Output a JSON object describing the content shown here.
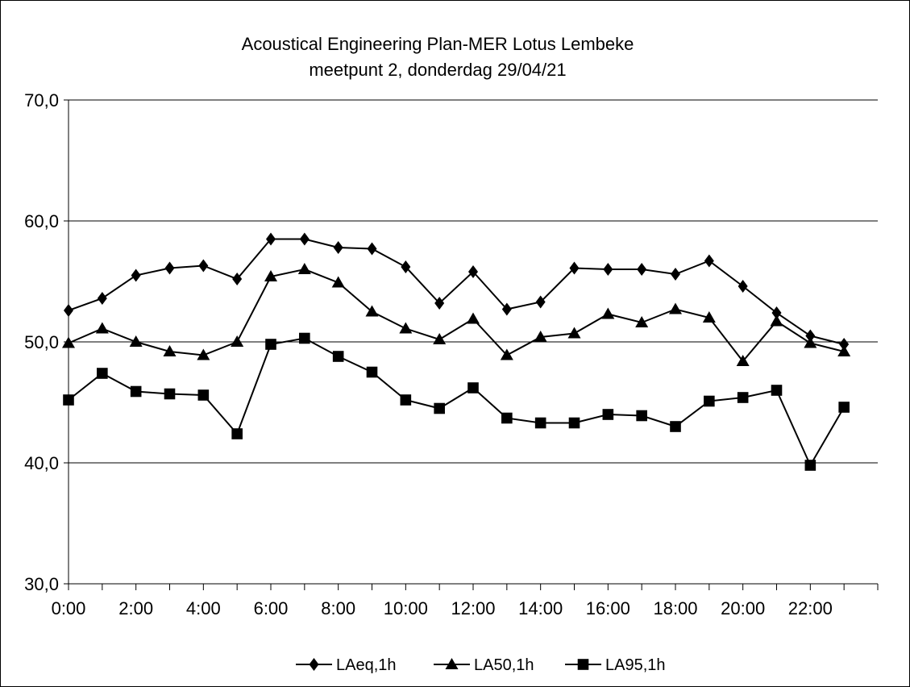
{
  "chart_data": {
    "type": "line",
    "title": "Acoustical Engineering Plan-MER Lotus Lembeke",
    "subtitle": "meetpunt 2, donderdag 29/04/21",
    "xlabel": "",
    "ylabel": "",
    "ylim": [
      30,
      70
    ],
    "y_ticks": [
      "30,0",
      "40,0",
      "50,0",
      "60,0",
      "70,0"
    ],
    "y_tick_values": [
      30,
      40,
      50,
      60,
      70
    ],
    "categories": [
      "0:00",
      "1:00",
      "2:00",
      "3:00",
      "4:00",
      "5:00",
      "6:00",
      "7:00",
      "8:00",
      "9:00",
      "10:00",
      "11:00",
      "12:00",
      "13:00",
      "14:00",
      "15:00",
      "16:00",
      "17:00",
      "18:00",
      "19:00",
      "20:00",
      "21:00",
      "22:00",
      "23:00"
    ],
    "x_tick_labels": [
      "0:00",
      "2:00",
      "4:00",
      "6:00",
      "8:00",
      "10:00",
      "12:00",
      "14:00",
      "16:00",
      "18:00",
      "20:00",
      "22:00"
    ],
    "grid": "horizontal",
    "legend_position": "bottom",
    "series": [
      {
        "name": "LAeq,1h",
        "marker": "diamond",
        "color": "#000000",
        "values": [
          52.6,
          53.6,
          55.5,
          56.1,
          56.3,
          55.2,
          58.5,
          58.5,
          57.8,
          57.7,
          56.2,
          53.2,
          55.8,
          52.7,
          53.3,
          56.1,
          56.0,
          56.0,
          55.6,
          56.7,
          54.6,
          52.4,
          50.5,
          49.8
        ]
      },
      {
        "name": "LA50,1h",
        "marker": "triangle",
        "color": "#000000",
        "values": [
          49.9,
          51.1,
          50.0,
          49.2,
          48.9,
          50.0,
          55.4,
          56.0,
          54.9,
          52.5,
          51.1,
          50.2,
          51.9,
          48.9,
          50.4,
          50.7,
          52.3,
          51.6,
          52.7,
          52.0,
          48.4,
          51.7,
          49.9,
          49.2
        ]
      },
      {
        "name": "LA95,1h",
        "marker": "square",
        "color": "#000000",
        "values": [
          45.2,
          47.4,
          45.9,
          45.7,
          45.6,
          42.4,
          49.8,
          50.3,
          48.8,
          47.5,
          45.2,
          44.5,
          46.2,
          43.7,
          43.3,
          43.3,
          44.0,
          43.9,
          43.0,
          45.1,
          45.4,
          46.0,
          39.8,
          44.6
        ]
      }
    ]
  }
}
